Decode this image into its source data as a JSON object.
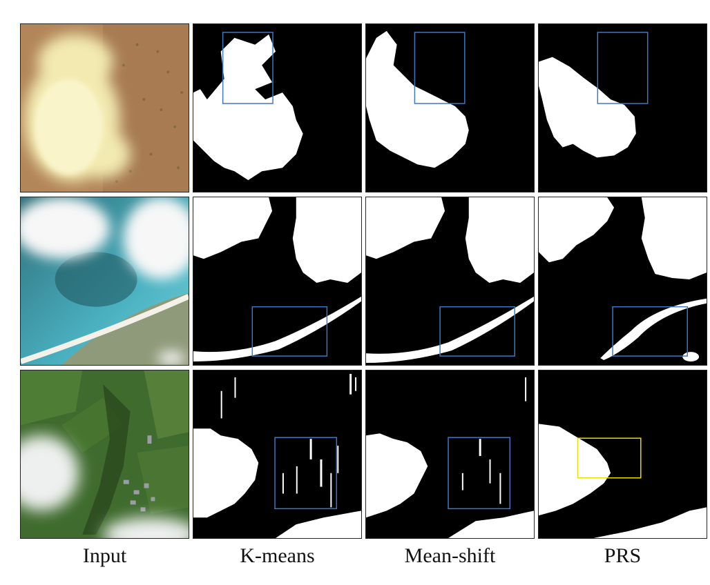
{
  "figure": {
    "columns": [
      {
        "label": "Input"
      },
      {
        "label": "K-means"
      },
      {
        "label": "Mean-shift"
      },
      {
        "label": "PRS"
      }
    ],
    "rows": [
      {
        "input_scene": "cloud over arid terrain"
      },
      {
        "input_scene": "clouds over coastal reef and beach"
      },
      {
        "input_scene": "cloud over green fields and village"
      }
    ],
    "highlight_colors": {
      "blue": "#3a78c8",
      "yellow": "#e8e000"
    }
  }
}
